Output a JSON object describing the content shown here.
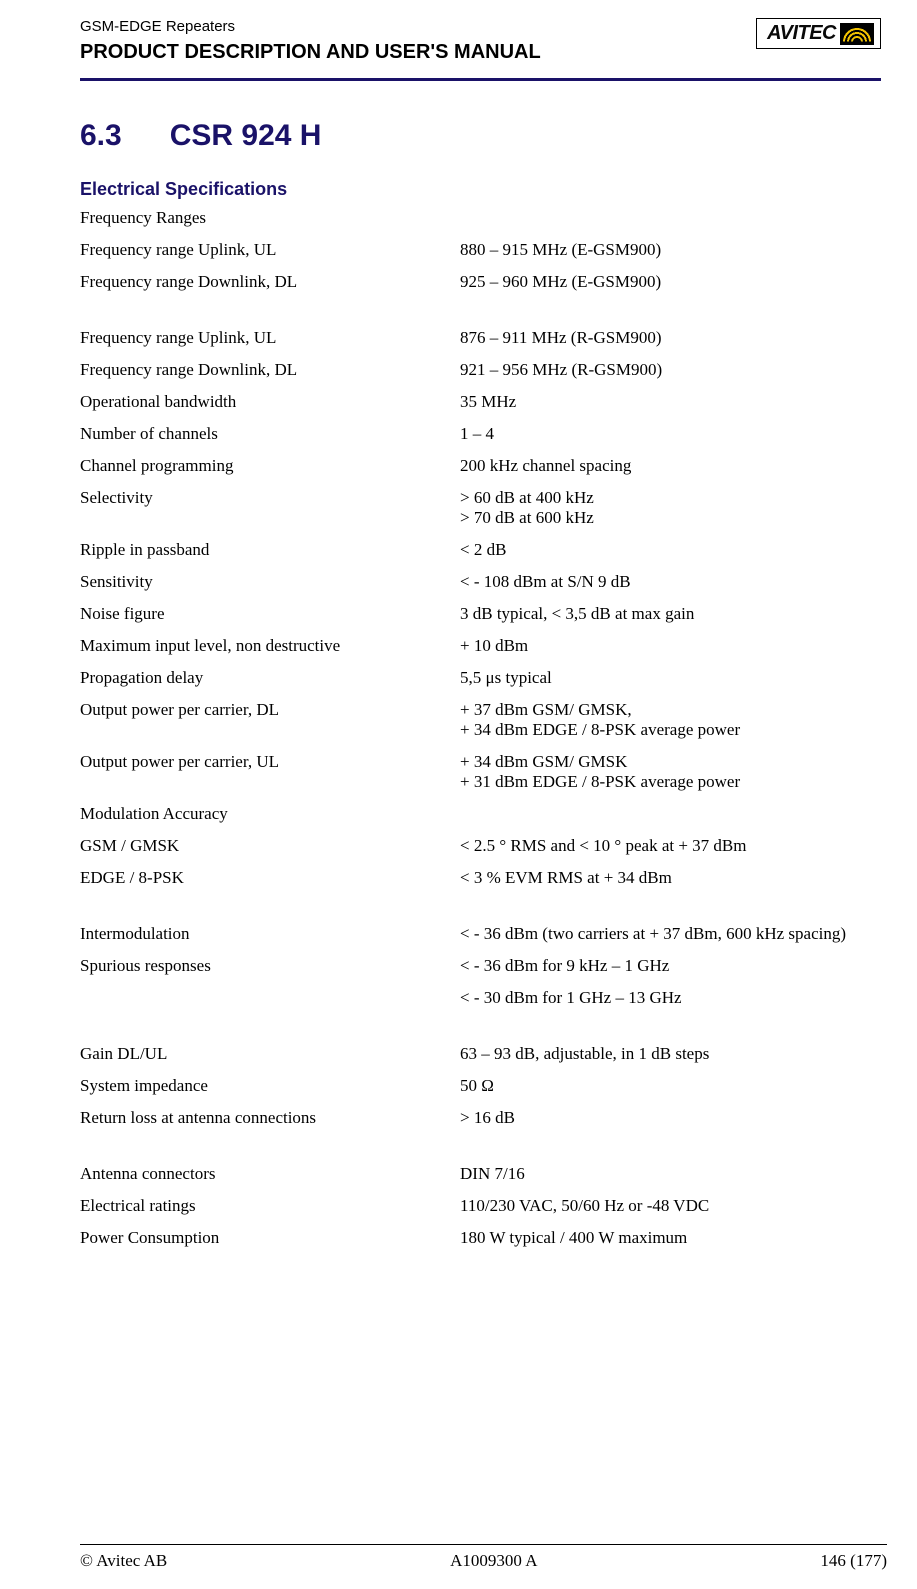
{
  "header": {
    "running_title": "GSM-EDGE Repeaters",
    "doc_title": "PRODUCT DESCRIPTION AND USER'S MANUAL",
    "logo_text": "AVITEC"
  },
  "section": {
    "number": "6.3",
    "title": "CSR 924 H",
    "subheading": "Electrical Specifications"
  },
  "specs": {
    "freq_ranges_label": "Frequency Ranges",
    "g1": [
      {
        "label": "Frequency range Uplink, UL",
        "value": "880 – 915 MHz (E-GSM900)"
      },
      {
        "label": "Frequency range Downlink, DL",
        "value": "925 – 960 MHz (E-GSM900)"
      }
    ],
    "g2": [
      {
        "label": "Frequency range Uplink, UL",
        "value": "876 – 911 MHz (R-GSM900)"
      },
      {
        "label": "Frequency range Downlink, DL",
        "value": "921 – 956 MHz (R-GSM900)"
      },
      {
        "label": "Operational bandwidth",
        "value": "35 MHz"
      },
      {
        "label": "Number of channels",
        "value": "1 – 4"
      },
      {
        "label": "Channel programming",
        "value": "200 kHz channel spacing"
      },
      {
        "label": "Selectivity",
        "value": "> 60 dB at 400 kHz\n> 70 dB at 600 kHz"
      },
      {
        "label": "Ripple in passband",
        "value": "< 2 dB"
      },
      {
        "label": "Sensitivity",
        "value": "< - 108 dBm at S/N 9 dB"
      },
      {
        "label": "Noise figure",
        "value": "3 dB typical, < 3,5 dB at max gain"
      },
      {
        "label": "Maximum input level, non destructive",
        "value": "+ 10 dBm"
      },
      {
        "label": "Propagation delay",
        "value": "5,5 μs typical"
      },
      {
        "label": "Output power per carrier, DL",
        "value": "+ 37 dBm GSM/ GMSK,\n+ 34 dBm EDGE / 8-PSK average power"
      },
      {
        "label": "Output power per carrier, UL",
        "value": "+ 34 dBm GSM/ GMSK\n+ 31 dBm EDGE / 8-PSK average power"
      }
    ],
    "modacc_label": "Modulation Accuracy",
    "g3": [
      {
        "label": "GSM / GMSK",
        "value": "< 2.5 ° RMS and < 10 ° peak at + 37 dBm"
      },
      {
        "label": "EDGE / 8-PSK",
        "value": "< 3 % EVM RMS at + 34 dBm"
      }
    ],
    "g4": [
      {
        "label": "Intermodulation",
        "value": "< - 36 dBm (two carriers at + 37 dBm, 600 kHz spacing)"
      },
      {
        "label": "Spurious responses",
        "value": "< - 36 dBm for 9 kHz – 1 GHz"
      },
      {
        "label": "",
        "value": "< - 30 dBm for 1 GHz – 13 GHz"
      }
    ],
    "g5": [
      {
        "label": "Gain DL/UL",
        "value": "63  – 93 dB, adjustable, in 1 dB steps"
      },
      {
        "label": "System impedance",
        "value": "50 Ω"
      },
      {
        "label": "Return loss at antenna connections",
        "value": "> 16 dB"
      }
    ],
    "g6": [
      {
        "label": "Antenna connectors",
        "value": "DIN 7/16"
      },
      {
        "label": "Electrical ratings",
        "value": "110/230 VAC, 50/60 Hz or -48 VDC"
      },
      {
        "label": "Power Consumption",
        "value": "180 W typical / 400 W maximum"
      }
    ]
  },
  "footer": {
    "left": "© Avitec AB",
    "center": "A1009300 A",
    "right": "146 (177)"
  },
  "colors": {
    "accent": "#1a1268",
    "text": "#000000",
    "background": "#ffffff"
  }
}
